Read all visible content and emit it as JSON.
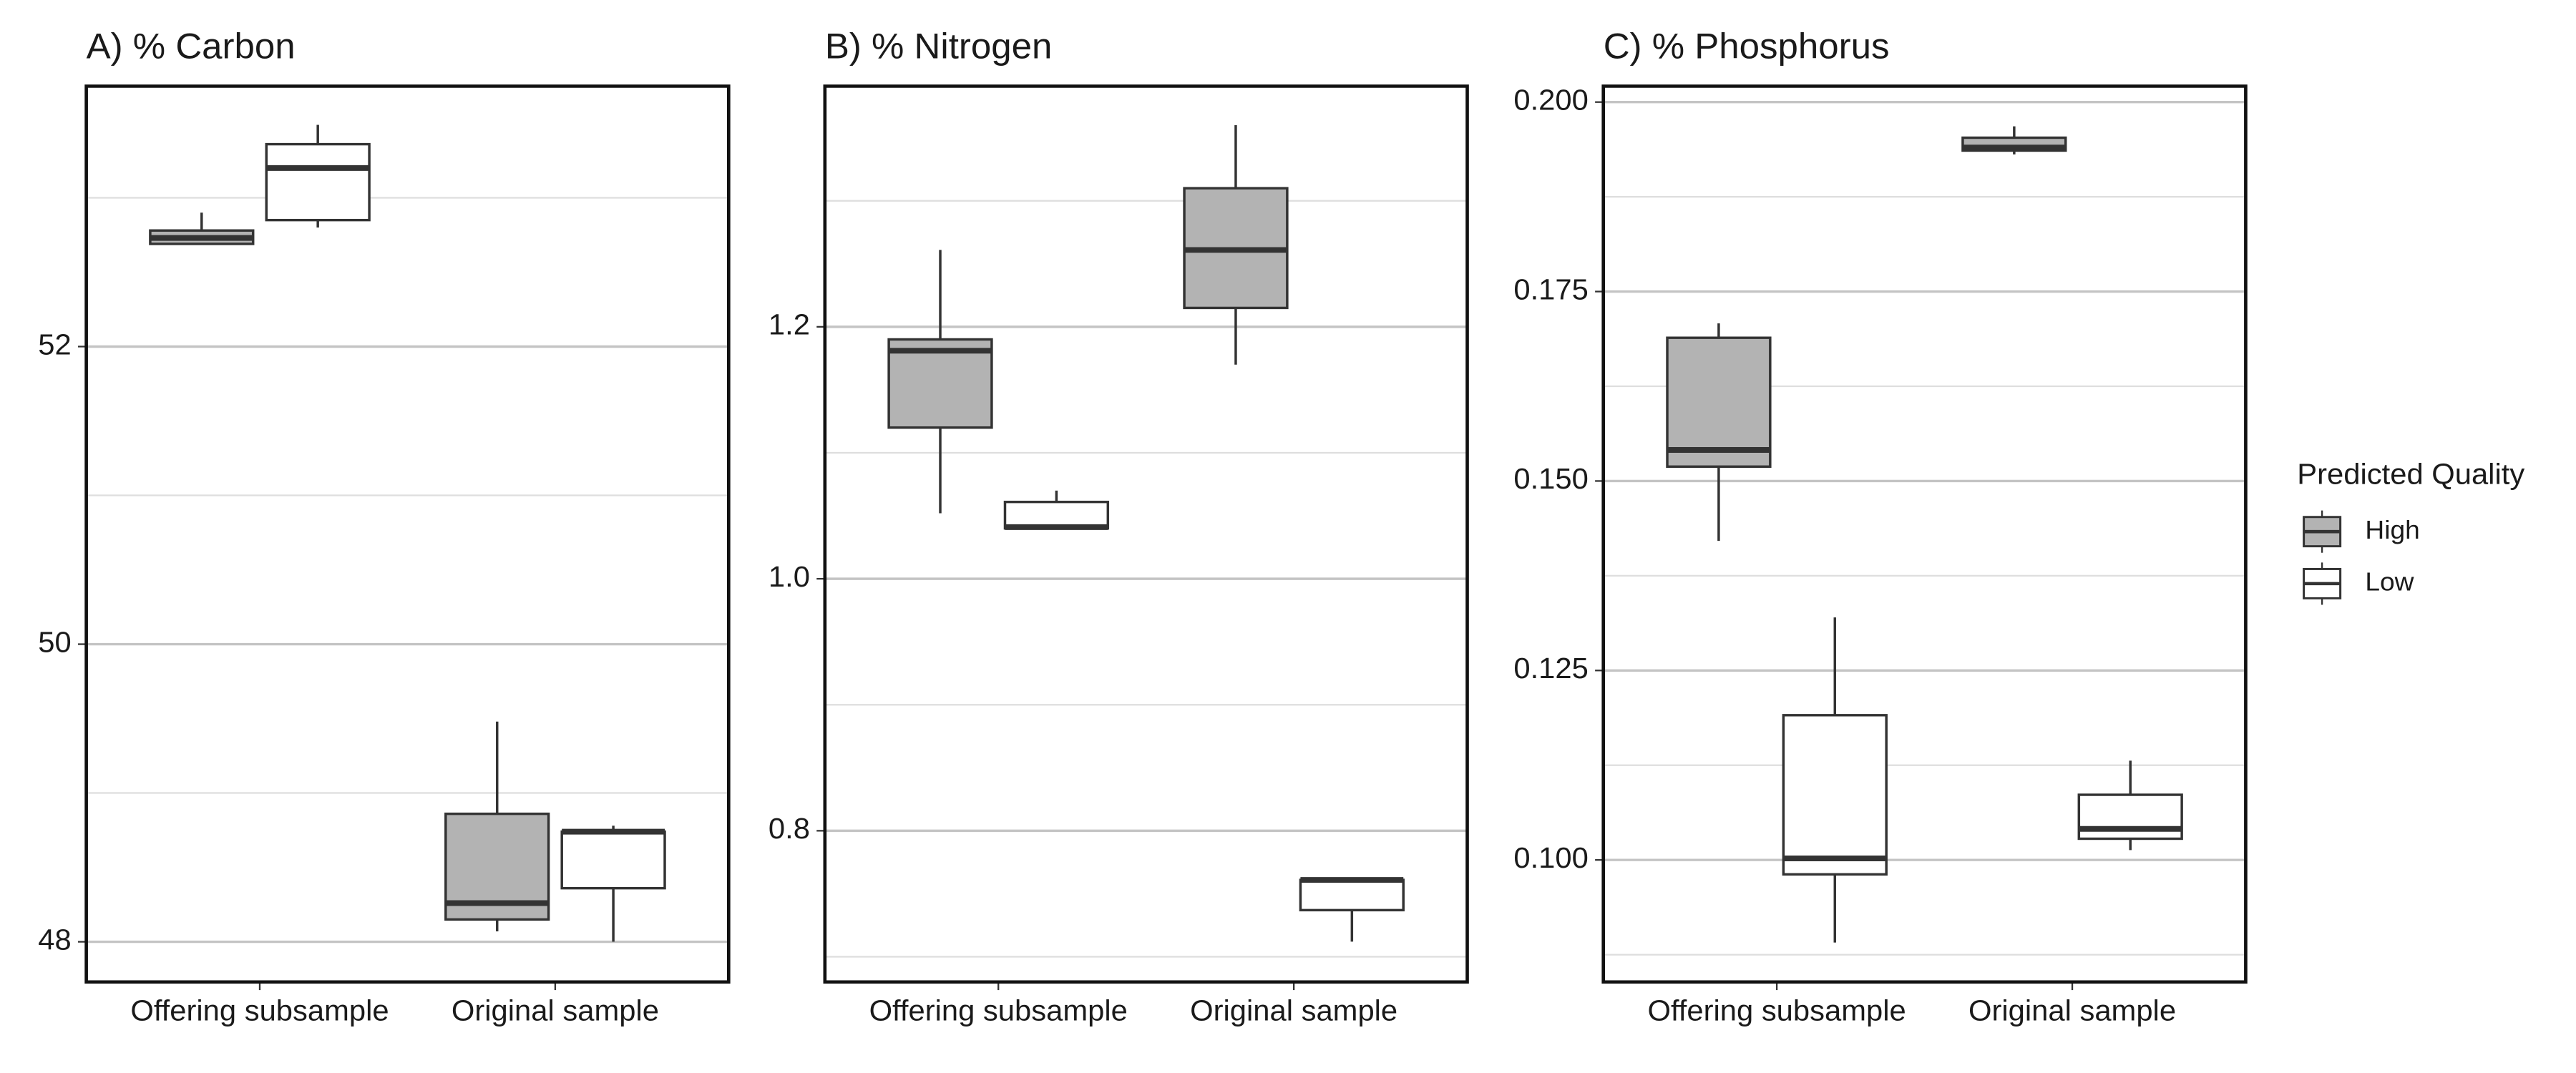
{
  "legend": {
    "title": "Predicted Quality"
  },
  "chart_data": [
    {
      "type": "box",
      "title": "A) % Carbon",
      "categories": [
        "Offering subsample",
        "Original sample"
      ],
      "ylim": [
        47.73,
        53.75
      ],
      "yticks": [
        48,
        50,
        52
      ],
      "grid": true,
      "series": [
        {
          "name": "High",
          "color": "#b3b3b3",
          "low": [
            52.69,
            48.07
          ],
          "q1": [
            52.69,
            48.15
          ],
          "median": [
            52.73,
            48.26
          ],
          "q3": [
            52.78,
            48.86
          ],
          "high": [
            52.9,
            49.48
          ]
        },
        {
          "name": "Low",
          "color": "#ffffff",
          "low": [
            52.8,
            48.0
          ],
          "q1": [
            52.85,
            48.36
          ],
          "median": [
            53.2,
            48.74
          ],
          "q3": [
            53.36,
            48.74
          ],
          "high": [
            53.49,
            48.78
          ]
        }
      ]
    },
    {
      "type": "box",
      "title": "B) % Nitrogen",
      "categories": [
        "Offering subsample",
        "Original sample"
      ],
      "ylim": [
        0.68,
        1.391
      ],
      "yticks": [
        0.8,
        {
          "value": 1.0,
          "label": "1.0"
        },
        1.2
      ],
      "grid": true,
      "series": [
        {
          "name": "High",
          "color": "#b3b3b3",
          "low": [
            1.052,
            1.17
          ],
          "q1": [
            1.12,
            1.215
          ],
          "median": [
            1.181,
            1.261
          ],
          "q3": [
            1.19,
            1.31
          ],
          "high": [
            1.261,
            1.36
          ]
        },
        {
          "name": "Low",
          "color": "#ffffff",
          "low": [
            1.04,
            0.712
          ],
          "q1": [
            1.04,
            0.737
          ],
          "median": [
            1.041,
            0.761
          ],
          "q3": [
            1.061,
            0.761
          ],
          "high": [
            1.07,
            0.761
          ]
        }
      ]
    },
    {
      "type": "box",
      "title": "C) % Phosphorus",
      "categories": [
        "Offering subsample",
        "Original sample"
      ],
      "ylim": [
        0.0839,
        0.2021
      ],
      "yticks": [
        {
          "value": 0.1,
          "label": "0.100"
        },
        {
          "value": 0.125,
          "label": "0.125"
        },
        {
          "value": 0.15,
          "label": "0.150"
        },
        {
          "value": 0.175,
          "label": "0.175"
        },
        {
          "value": 0.2,
          "label": "0.200"
        }
      ],
      "grid": true,
      "series": [
        {
          "name": "High",
          "color": "#b3b3b3",
          "low": [
            0.1421,
            0.1931
          ],
          "q1": [
            0.1519,
            0.1936
          ],
          "median": [
            0.1541,
            0.194
          ],
          "q3": [
            0.1689,
            0.1953
          ],
          "high": [
            0.1708,
            0.1968
          ]
        },
        {
          "name": "Low",
          "color": "#ffffff",
          "low": [
            0.0891,
            0.1013
          ],
          "q1": [
            0.0981,
            0.1028
          ],
          "median": [
            0.1002,
            0.1041
          ],
          "q3": [
            0.1191,
            0.1086
          ],
          "high": [
            0.132,
            0.1131
          ]
        }
      ]
    }
  ]
}
